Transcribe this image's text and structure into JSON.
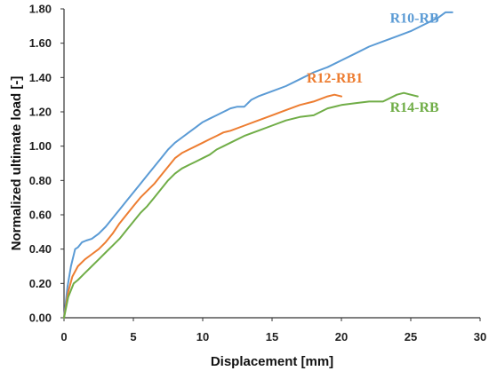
{
  "chart_data": {
    "type": "line",
    "title": "",
    "xlabel": "Displacement [mm]",
    "ylabel": "Normalized ultimate load [-]",
    "xlim": [
      0,
      30
    ],
    "ylim": [
      0,
      1.8
    ],
    "x_ticks": [
      0,
      5,
      10,
      15,
      20,
      25,
      30
    ],
    "x_tick_labels": [
      "0",
      "5",
      "10",
      "15",
      "20",
      "25",
      "30"
    ],
    "y_ticks": [
      0,
      0.2,
      0.4,
      0.6,
      0.8,
      1.0,
      1.2,
      1.4,
      1.6,
      1.8
    ],
    "y_tick_labels": [
      "0.00",
      "0.20",
      "0.40",
      "0.60",
      "0.80",
      "1.00",
      "1.20",
      "1.40",
      "1.60",
      "1.80"
    ],
    "grid": false,
    "legend": "inline labels",
    "series": [
      {
        "name": "R10-RB",
        "color": "#5b9bd5",
        "label_at": [
          23.5,
          1.72
        ],
        "points": [
          [
            0,
            0
          ],
          [
            0.25,
            0.18
          ],
          [
            0.5,
            0.3
          ],
          [
            0.8,
            0.4
          ],
          [
            1.0,
            0.41
          ],
          [
            1.3,
            0.44
          ],
          [
            1.6,
            0.45
          ],
          [
            2.0,
            0.46
          ],
          [
            2.5,
            0.49
          ],
          [
            3.0,
            0.53
          ],
          [
            3.5,
            0.58
          ],
          [
            4.0,
            0.63
          ],
          [
            4.5,
            0.68
          ],
          [
            5.0,
            0.73
          ],
          [
            5.5,
            0.78
          ],
          [
            6.0,
            0.83
          ],
          [
            6.5,
            0.88
          ],
          [
            7.0,
            0.93
          ],
          [
            7.5,
            0.98
          ],
          [
            8.0,
            1.02
          ],
          [
            8.5,
            1.05
          ],
          [
            9.0,
            1.08
          ],
          [
            9.5,
            1.11
          ],
          [
            10.0,
            1.14
          ],
          [
            10.5,
            1.16
          ],
          [
            11.0,
            1.18
          ],
          [
            11.5,
            1.2
          ],
          [
            12.0,
            1.22
          ],
          [
            12.5,
            1.23
          ],
          [
            13.0,
            1.23
          ],
          [
            13.5,
            1.27
          ],
          [
            14.0,
            1.29
          ],
          [
            15.0,
            1.32
          ],
          [
            16.0,
            1.35
          ],
          [
            17.0,
            1.39
          ],
          [
            18.0,
            1.43
          ],
          [
            19.0,
            1.46
          ],
          [
            20.0,
            1.5
          ],
          [
            21.0,
            1.54
          ],
          [
            22.0,
            1.58
          ],
          [
            23.0,
            1.61
          ],
          [
            24.0,
            1.64
          ],
          [
            25.0,
            1.67
          ],
          [
            26.0,
            1.71
          ],
          [
            27.0,
            1.75
          ],
          [
            27.5,
            1.78
          ],
          [
            28.0,
            1.78
          ]
        ]
      },
      {
        "name": "R12-RB1",
        "color": "#ed7d31",
        "label_at": [
          17.5,
          1.37
        ],
        "points": [
          [
            0,
            0
          ],
          [
            0.3,
            0.15
          ],
          [
            0.6,
            0.24
          ],
          [
            1.0,
            0.3
          ],
          [
            1.5,
            0.34
          ],
          [
            2.0,
            0.37
          ],
          [
            2.5,
            0.4
          ],
          [
            3.0,
            0.44
          ],
          [
            3.5,
            0.49
          ],
          [
            4.0,
            0.55
          ],
          [
            4.5,
            0.6
          ],
          [
            5.0,
            0.65
          ],
          [
            5.5,
            0.7
          ],
          [
            6.0,
            0.74
          ],
          [
            6.5,
            0.78
          ],
          [
            7.0,
            0.83
          ],
          [
            7.5,
            0.88
          ],
          [
            8.0,
            0.93
          ],
          [
            8.5,
            0.96
          ],
          [
            9.0,
            0.98
          ],
          [
            9.5,
            1.0
          ],
          [
            10.0,
            1.02
          ],
          [
            10.5,
            1.04
          ],
          [
            11.0,
            1.06
          ],
          [
            11.5,
            1.08
          ],
          [
            12.0,
            1.09
          ],
          [
            13.0,
            1.12
          ],
          [
            14.0,
            1.15
          ],
          [
            15.0,
            1.18
          ],
          [
            16.0,
            1.21
          ],
          [
            17.0,
            1.24
          ],
          [
            18.0,
            1.26
          ],
          [
            19.0,
            1.29
          ],
          [
            19.5,
            1.3
          ],
          [
            20.0,
            1.29
          ]
        ]
      },
      {
        "name": "R14-RB",
        "color": "#70ad47",
        "label_at": [
          23.5,
          1.2
        ],
        "points": [
          [
            0,
            0
          ],
          [
            0.3,
            0.12
          ],
          [
            0.7,
            0.2
          ],
          [
            1.0,
            0.22
          ],
          [
            1.5,
            0.26
          ],
          [
            2.0,
            0.3
          ],
          [
            2.5,
            0.34
          ],
          [
            3.0,
            0.38
          ],
          [
            3.5,
            0.42
          ],
          [
            4.0,
            0.46
          ],
          [
            4.5,
            0.51
          ],
          [
            5.0,
            0.56
          ],
          [
            5.5,
            0.61
          ],
          [
            6.0,
            0.65
          ],
          [
            6.5,
            0.7
          ],
          [
            7.0,
            0.75
          ],
          [
            7.5,
            0.8
          ],
          [
            8.0,
            0.84
          ],
          [
            8.5,
            0.87
          ],
          [
            9.0,
            0.89
          ],
          [
            9.5,
            0.91
          ],
          [
            10.0,
            0.93
          ],
          [
            10.5,
            0.95
          ],
          [
            11.0,
            0.98
          ],
          [
            11.5,
            1.0
          ],
          [
            12.0,
            1.02
          ],
          [
            13.0,
            1.06
          ],
          [
            14.0,
            1.09
          ],
          [
            15.0,
            1.12
          ],
          [
            16.0,
            1.15
          ],
          [
            17.0,
            1.17
          ],
          [
            18.0,
            1.18
          ],
          [
            19.0,
            1.22
          ],
          [
            20.0,
            1.24
          ],
          [
            21.0,
            1.25
          ],
          [
            22.0,
            1.26
          ],
          [
            23.0,
            1.26
          ],
          [
            24.0,
            1.3
          ],
          [
            24.5,
            1.31
          ],
          [
            25.0,
            1.3
          ],
          [
            25.5,
            1.29
          ]
        ]
      }
    ]
  }
}
